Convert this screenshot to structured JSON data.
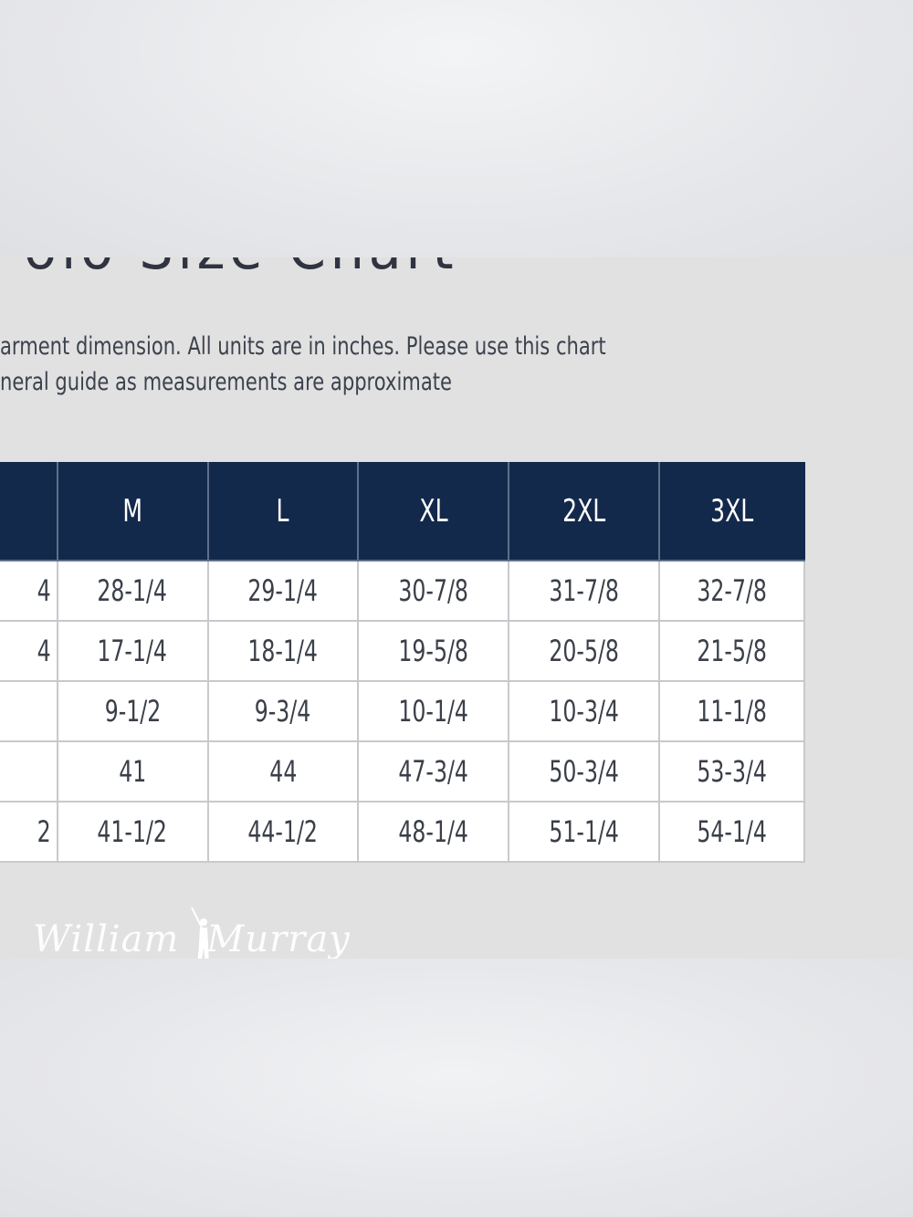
{
  "title_fragment": "Polo Size Chart",
  "description": {
    "line1": "arment dimension. All units are in inches. Please use this chart",
    "line2": "neral guide as measurements are approximate"
  },
  "table": {
    "headers": [
      "",
      "M",
      "L",
      "XL",
      "2XL",
      "3XL"
    ],
    "rows": [
      [
        "4",
        "28-1/4",
        "29-1/4",
        "30-7/8",
        "31-7/8",
        "32-7/8"
      ],
      [
        "4",
        "17-1/4",
        "18-1/4",
        "19-5/8",
        "20-5/8",
        "21-5/8"
      ],
      [
        "",
        "9-1/2",
        "9-3/4",
        "10-1/4",
        "10-3/4",
        "11-1/8"
      ],
      [
        "",
        "41",
        "44",
        "47-3/4",
        "50-3/4",
        "53-3/4"
      ],
      [
        "2",
        "41-1/2",
        "44-1/2",
        "48-1/4",
        "51-1/4",
        "54-1/4"
      ]
    ]
  },
  "logo": {
    "first": "William",
    "last": "Murray"
  },
  "colors": {
    "header_bg": "#13294b",
    "header_text": "#ffffff",
    "panel_bg": "#e1e1e1",
    "cell_border": "#c8c9cc"
  }
}
